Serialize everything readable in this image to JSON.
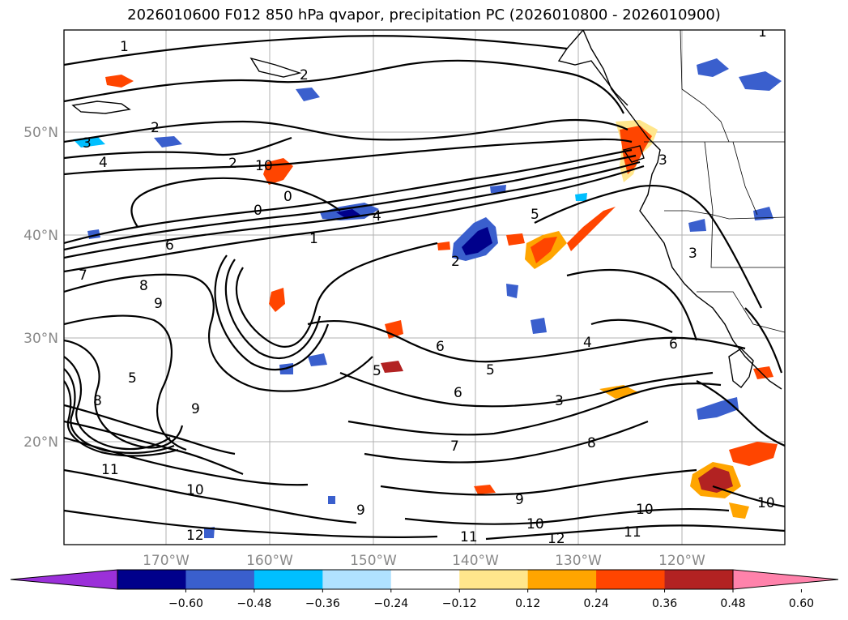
{
  "title": "2026010600 F012 850 hPa qvapor, precipitation PC (2026010800 - 2026010900)",
  "lat_labels": [
    "50°N",
    "40°N",
    "30°N",
    "20°N"
  ],
  "lon_labels": [
    "170°W",
    "160°W",
    "150°W",
    "140°W",
    "130°W",
    "120°W"
  ],
  "colorbar": {
    "ticks": [
      "−0.60",
      "−0.48",
      "−0.36",
      "−0.24",
      "−0.12",
      "0.12",
      "0.24",
      "0.36",
      "0.48",
      "0.60"
    ],
    "colors": [
      "#9b30d9",
      "#00008b",
      "#3a5fcd",
      "#00bfff",
      "#b0e2ff",
      "#ffffff",
      "#ffe68c",
      "#ffa500",
      "#ff4500",
      "#b22222",
      "#ff82ab"
    ]
  },
  "contour_labels": [
    "1",
    "2",
    "2",
    "3",
    "4",
    "2",
    "10",
    "0",
    "0",
    "4",
    "1",
    "6",
    "7",
    "8",
    "9",
    "8",
    "5",
    "9",
    "11",
    "10",
    "12",
    "9",
    "5",
    "6",
    "5",
    "6",
    "4",
    "6",
    "3",
    "7",
    "8",
    "9",
    "10",
    "11",
    "12",
    "11",
    "10",
    "10",
    "3",
    "5",
    "2",
    "1",
    "3"
  ]
}
